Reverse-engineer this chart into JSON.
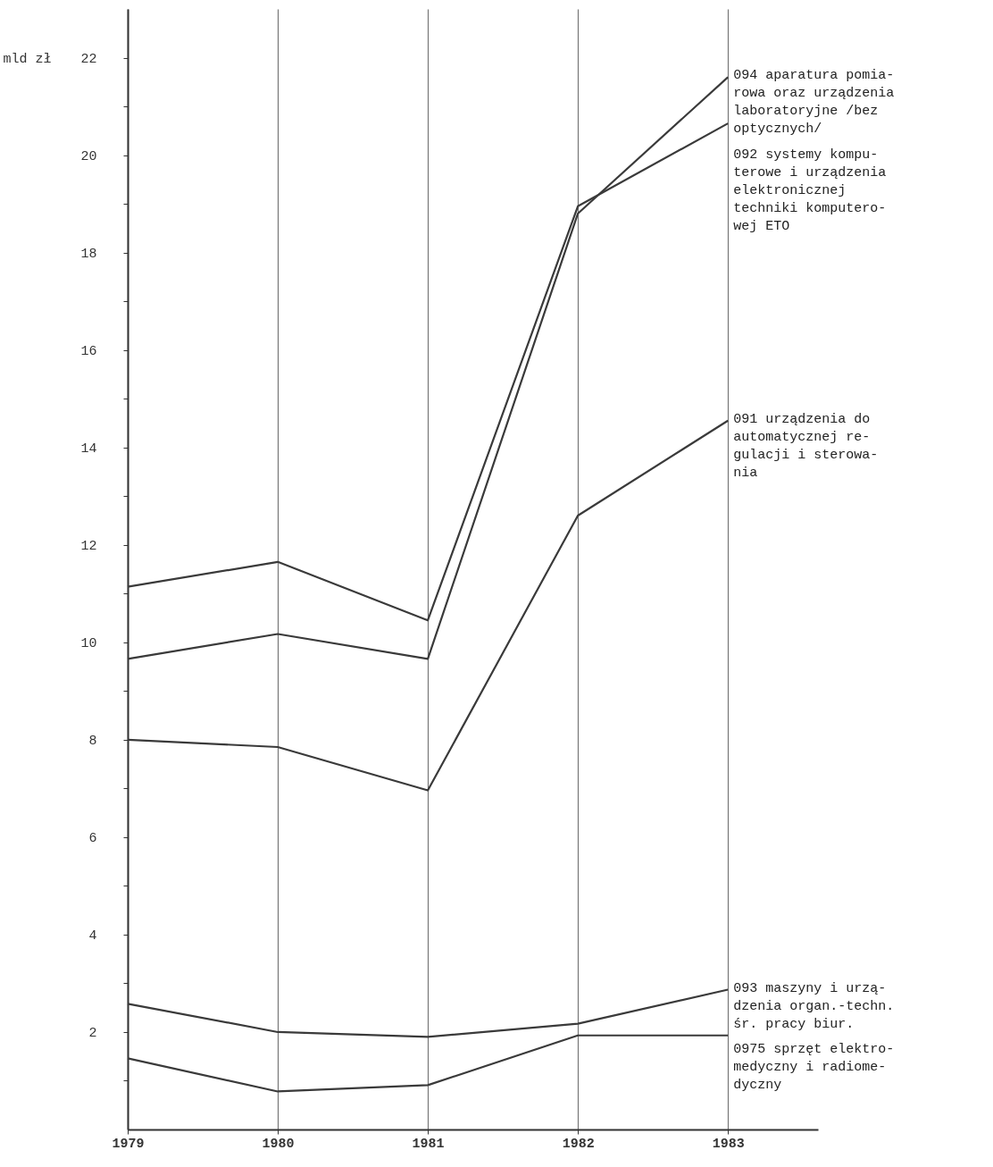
{
  "chart_data": {
    "type": "line",
    "ylabel": "mld zł",
    "x": [
      1979,
      1980,
      1981,
      1982,
      1983
    ],
    "xlim": [
      1979,
      1983.6
    ],
    "xticks": [
      1979,
      1980,
      1981,
      1982,
      1983
    ],
    "ylim": [
      0,
      23
    ],
    "yticks": [
      {
        "value": 1,
        "label": null
      },
      2,
      {
        "value": 3,
        "label": null
      },
      4,
      {
        "value": 5,
        "label": null
      },
      6,
      {
        "value": 7,
        "label": null
      },
      8,
      {
        "value": 9,
        "label": null
      },
      10,
      {
        "value": 11,
        "label": null
      },
      12,
      {
        "value": 13,
        "label": null
      },
      14,
      {
        "value": 15,
        "label": null
      },
      16,
      {
        "value": 17,
        "label": null
      },
      18,
      {
        "value": 19,
        "label": null
      },
      20,
      {
        "value": 21,
        "label": null
      },
      22
    ],
    "grid": "x",
    "legend": false,
    "marker": "none",
    "line_style": "solid",
    "series": [
      {
        "name": "094 aparatura pomia-\nrowa oraz urządzenia\nlaboratoryjne /bez\noptycznych/",
        "color": "#3a3a3a",
        "values": [
          9.66,
          10.17,
          9.66,
          18.8,
          21.6
        ]
      },
      {
        "name": "092 systemy kompu-\nterowe i urządzenia\nelektronicznej\ntechniki komputero-\nwej ETO",
        "color": "#3a3a3a",
        "values": [
          11.14,
          11.65,
          10.45,
          18.95,
          20.65
        ]
      },
      {
        "name": "091 urządzenia do\nautomatycznej re-\ngulacji i sterowa-\nnia",
        "color": "#3a3a3a",
        "values": [
          8.0,
          7.85,
          6.96,
          12.6,
          14.55
        ]
      },
      {
        "name": "093 maszyny i urzą-\ndzenia organ.-techn.\nśr. pracy biur.",
        "color": "#3a3a3a",
        "values": [
          2.58,
          2.0,
          1.9,
          2.17,
          2.87
        ]
      },
      {
        "name": "0975 sprzęt elektro-\nmedyczny i radiome-\ndyczny",
        "color": "#3a3a3a",
        "values": [
          1.46,
          0.78,
          0.91,
          1.93,
          1.93
        ]
      }
    ]
  }
}
